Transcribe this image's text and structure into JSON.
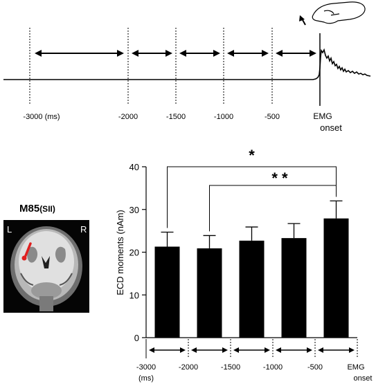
{
  "top_panel": {
    "time_labels": [
      "-3000 (ms)",
      "-2000",
      "-1500",
      "-1000",
      "-500"
    ],
    "emg_label_line1": "EMG",
    "emg_label_line2": "onset"
  },
  "brain_panel": {
    "title_main": "M85",
    "title_sub": "(SII)",
    "left_marker": "L",
    "right_marker": "R",
    "dipole_color": "#e02020"
  },
  "chart_data": {
    "type": "bar",
    "ylabel": "ECD moments (nAm)",
    "ylim": [
      0,
      40
    ],
    "yticks": [
      0,
      10,
      20,
      30,
      40
    ],
    "categories": [
      "-3000~-2000",
      "-2000~-1500",
      "-1500~-1000",
      "-1000~-500",
      "-500~0"
    ],
    "values": [
      21.3,
      20.9,
      22.7,
      23.3,
      27.9
    ],
    "errors": [
      3.4,
      3.0,
      3.2,
      3.4,
      4.1
    ],
    "bar_color": "#000000",
    "x_tick_labels": [
      "-3000",
      "-2000",
      "-1500",
      "-1000",
      "-500"
    ],
    "x_unit_label": "(ms)",
    "emg_label_line1": "EMG",
    "emg_label_line2": "onset",
    "significance": [
      {
        "from": 0,
        "to": 4,
        "label": "*"
      },
      {
        "from": 1,
        "to": 4,
        "label": "**"
      }
    ]
  }
}
